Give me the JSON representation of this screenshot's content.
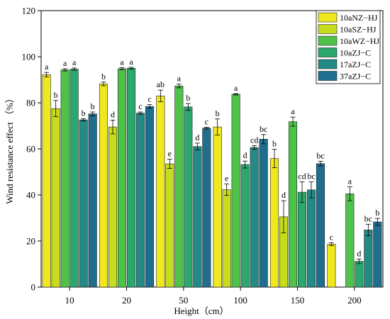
{
  "chart_data": {
    "type": "bar",
    "xlabel": "Height（cm）",
    "ylabel": "Wind resistance effect （%）",
    "ylim": [
      0,
      120
    ],
    "yticks": [
      0,
      20,
      40,
      60,
      80,
      100,
      120
    ],
    "categories": [
      "10",
      "20",
      "50",
      "100",
      "150",
      "200"
    ],
    "legend_position": "top-right",
    "series": [
      {
        "name": "10aNZ−HJ",
        "color": "#f0e81e",
        "values": [
          92.2,
          88.2,
          83.0,
          69.5,
          55.8,
          18.6
        ],
        "errors": [
          1.0,
          0.8,
          2.5,
          3.5,
          4.0,
          0.6
        ],
        "labels": [
          "a",
          "b",
          "ab",
          "b",
          "b",
          "c"
        ]
      },
      {
        "name": "10aSZ−HJ",
        "color": "#c8dc1e",
        "values": [
          77.5,
          69.5,
          53.5,
          42.3,
          30.5,
          null
        ],
        "errors": [
          3.5,
          3.0,
          2.0,
          2.5,
          7.0,
          null
        ],
        "labels": [
          "b",
          "d",
          "e",
          "e",
          "d",
          ""
        ]
      },
      {
        "name": "10aWZ−HJ",
        "color": "#4fc24a",
        "values": [
          94.3,
          94.8,
          87.3,
          83.7,
          71.8,
          40.5
        ],
        "errors": [
          0.5,
          0.5,
          0.8,
          0.3,
          2.0,
          3.0
        ],
        "labels": [
          "a",
          "a",
          "a",
          "a",
          "a",
          "a"
        ]
      },
      {
        "name": "10aZJ−C",
        "color": "#2aa86e",
        "values": [
          94.6,
          95.0,
          78.2,
          53.2,
          41.2,
          11.2
        ],
        "errors": [
          0.5,
          0.4,
          1.5,
          1.5,
          4.5,
          1.0
        ],
        "labels": [
          "a",
          "a",
          "b",
          "d",
          "cd",
          "d"
        ]
      },
      {
        "name": "17aZJ−C",
        "color": "#248a86",
        "values": [
          72.6,
          75.5,
          61.0,
          60.6,
          42.2,
          24.8
        ],
        "errors": [
          0.5,
          0.5,
          1.5,
          0.8,
          3.5,
          2.5
        ],
        "labels": [
          "b",
          "c",
          "d",
          "cd",
          "bc",
          "bc"
        ]
      },
      {
        "name": "37aZJ−C",
        "color": "#1f6e8e",
        "values": [
          75.2,
          78.4,
          69.0,
          64.2,
          53.6,
          28.3
        ],
        "errors": [
          0.8,
          0.8,
          0.4,
          2.0,
          1.0,
          1.5
        ],
        "labels": [
          "b",
          "c",
          "c",
          "bc",
          "bc",
          "b"
        ]
      }
    ]
  }
}
